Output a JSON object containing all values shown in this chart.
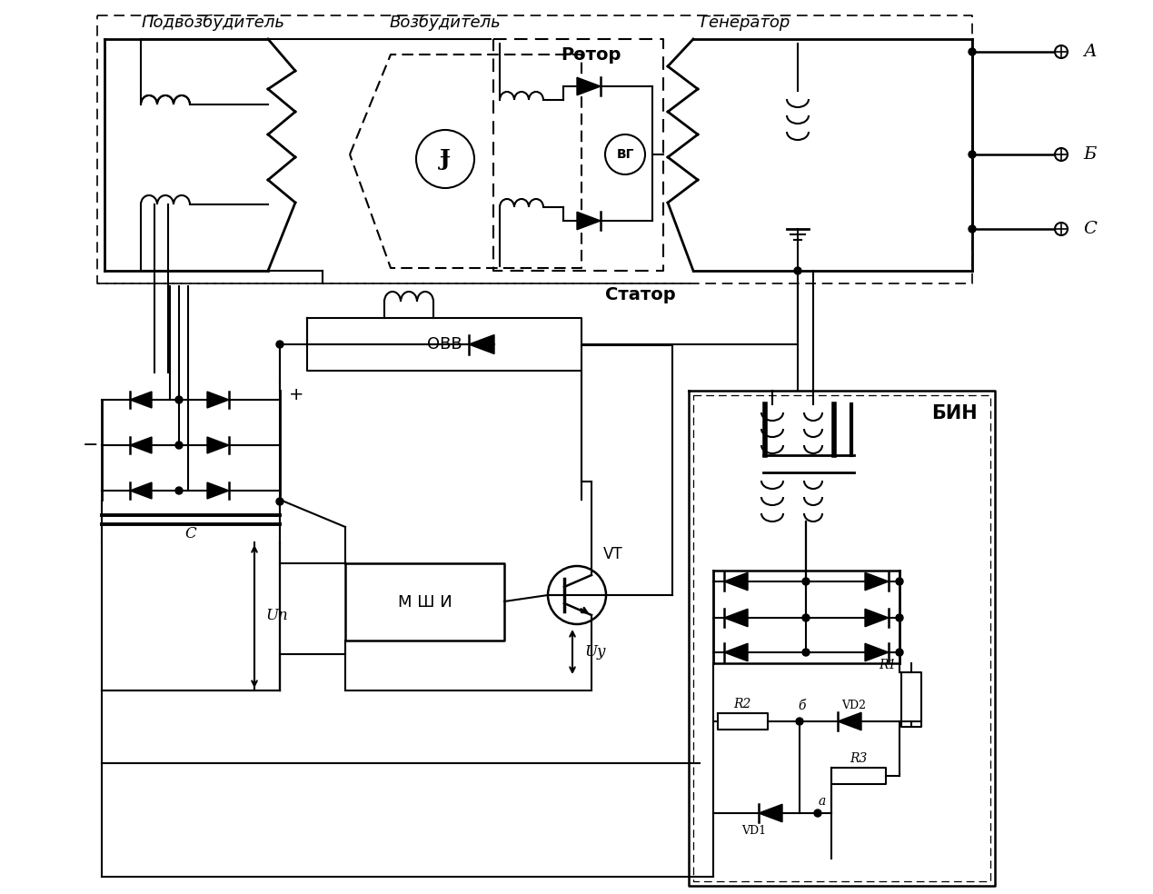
{
  "bg": "#ffffff",
  "labels": {
    "podvozb": "Подвозбудитель",
    "vozb": "Возбудитель",
    "gen": "Генератор",
    "rotor": "Ротор",
    "stator": "Статор",
    "ovv": "ОВВ",
    "bin": "БИН",
    "vg": "ВГ",
    "mshi": "М Ш И",
    "vt": "VT",
    "up": "Uп",
    "uy": "Uу",
    "cap": "C",
    "plus": "+",
    "minus": "−",
    "A": "А",
    "B": "Б",
    "CC": "С",
    "r1": "R1",
    "r2": "R2",
    "r3": "R3",
    "vd1": "VD1",
    "vd2": "VD2",
    "b_pt": "б",
    "a_pt": "а"
  }
}
